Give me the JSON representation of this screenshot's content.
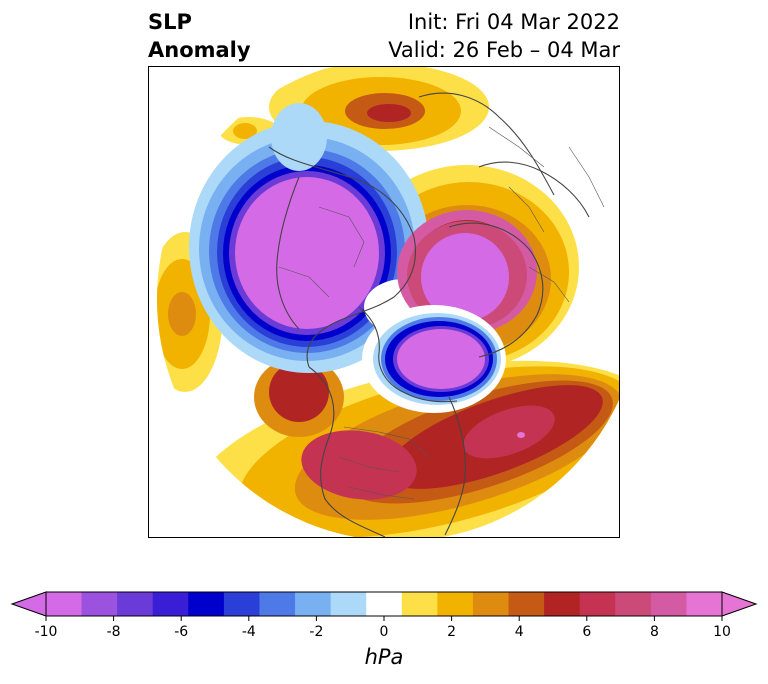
{
  "title": {
    "left_line1": "SLP",
    "left_line2": "Anomaly",
    "right_line1": "Init: Fri 04 Mar 2022",
    "right_line2": "Valid: 26 Feb – 04 Mar"
  },
  "colorbar": {
    "label": "hPa",
    "ticks": [
      "-10",
      "-8",
      "-6",
      "-4",
      "-2",
      "0",
      "2",
      "4",
      "6",
      "8",
      "10"
    ],
    "levels": [
      -10,
      -9,
      -8,
      -7,
      -6,
      -5,
      -4,
      -3,
      -2,
      -1,
      1,
      2,
      3,
      4,
      5,
      6,
      7,
      8,
      9,
      10
    ],
    "colors": [
      "#d46ae6",
      "#9b52de",
      "#6b3bd8",
      "#3a1ed6",
      "#0000cc",
      "#2a3ed8",
      "#4e7ae8",
      "#78b0f2",
      "#acd9f8",
      "#ffffff",
      "#fde047",
      "#f2b200",
      "#de8c10",
      "#c45a14",
      "#b02424",
      "#c43452",
      "#cc4a78",
      "#d45aa4",
      "#e674d4"
    ],
    "extend": "both"
  },
  "map": {
    "field": "SLP anomaly",
    "projection": "north-polar-stereographic",
    "coastlines": true,
    "borders": true
  }
}
